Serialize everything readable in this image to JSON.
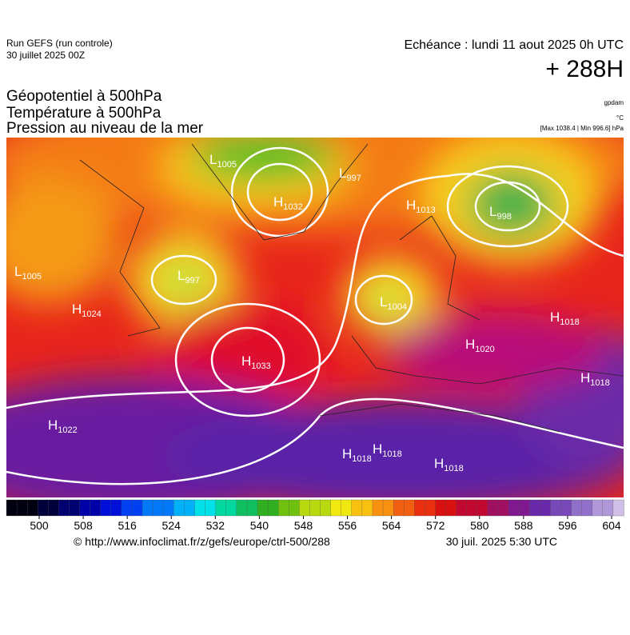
{
  "header": {
    "run": "Run GEFS (run controle)",
    "run_date": "30 juillet 2025 00Z",
    "valid": "Echéance : lundi 11 aout 2025 0h UTC",
    "lead": "+ 288H"
  },
  "titles": [
    "Géopotentiel à 500hPa",
    "Température à 500hPa",
    "Pression au niveau de la mer"
  ],
  "units": [
    "gpdam",
    "°C",
    "[Max 1038.4 | Min 996.6] hPa"
  ],
  "centers": [
    {
      "type": "L",
      "value": 1005
    },
    {
      "type": "L",
      "value": 997
    },
    {
      "type": "H",
      "value": 1032
    },
    {
      "type": "H",
      "value": 1013
    },
    {
      "type": "L",
      "value": 998
    },
    {
      "type": "L",
      "value": 1005
    },
    {
      "type": "L",
      "value": 997
    },
    {
      "type": "H",
      "value": 1024
    },
    {
      "type": "L",
      "value": 1004
    },
    {
      "type": "H",
      "value": 1018
    },
    {
      "type": "H",
      "value": 1020
    },
    {
      "type": "H",
      "value": 1033
    },
    {
      "type": "H",
      "value": 1018
    },
    {
      "type": "H",
      "value": 1022
    },
    {
      "type": "H",
      "value": 1018
    },
    {
      "type": "H",
      "value": 1018
    },
    {
      "type": "H",
      "value": 1018
    }
  ],
  "colorbar": {
    "ticks": [
      500,
      508,
      516,
      524,
      532,
      540,
      548,
      556,
      564,
      572,
      580,
      588,
      596,
      604
    ]
  },
  "footer": {
    "url": "© http://www.infoclimat.fr/z/gefs/europe/ctrl-500/288",
    "time": "30 juil. 2025  5:30 UTC"
  }
}
